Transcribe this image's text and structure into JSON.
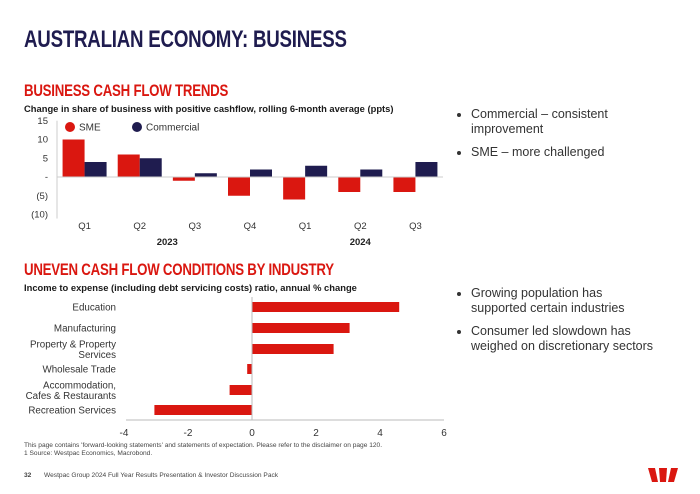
{
  "title": "AUSTRALIAN ECONOMY: BUSINESS",
  "colors": {
    "sme": "#da1710",
    "commercial": "#1f1c4f",
    "accent": "#da1710",
    "title": "#1f1c4f"
  },
  "chart_data": [
    {
      "type": "bar",
      "title": "BUSINESS CASH FLOW TRENDS",
      "subtitle": "Change in share of business with positive cashflow, rolling 6-month average (ppts)",
      "categories": [
        "Q1",
        "Q2",
        "Q3",
        "Q4",
        "Q1",
        "Q2",
        "Q3"
      ],
      "groups": [
        {
          "label": "2023",
          "span": [
            0,
            3
          ]
        },
        {
          "label": "2024",
          "span": [
            4,
            6
          ]
        }
      ],
      "series": [
        {
          "name": "SME",
          "color": "#da1710",
          "values": [
            10,
            6,
            -1,
            -5,
            -6,
            -4,
            -4
          ]
        },
        {
          "name": "Commercial",
          "color": "#1f1c4f",
          "values": [
            4,
            5,
            1,
            2,
            3,
            2,
            4
          ]
        }
      ],
      "yticks": [
        15,
        10,
        5,
        0,
        -5,
        -10
      ],
      "ytick_labels": [
        "15",
        "10",
        "5",
        "-",
        "(5)",
        "(10)"
      ],
      "ylim": [
        -10,
        15
      ],
      "legend": "top-left",
      "grid": false
    },
    {
      "type": "bar",
      "orientation": "horizontal",
      "title": "UNEVEN CASH FLOW CONDITIONS BY INDUSTRY",
      "subtitle": "Income to expense (including debt servicing costs) ratio, annual % change",
      "categories": [
        "Education",
        "Manufacturing",
        "Property & Property Services",
        "Wholesale Trade",
        "Accommodation, Cafes & Restaurants",
        "Recreation Services"
      ],
      "category_lines": [
        [
          "Education"
        ],
        [
          "Manufacturing"
        ],
        [
          "Property & Property",
          "Services"
        ],
        [
          "Wholesale Trade"
        ],
        [
          "Accommodation,",
          "Cafes & Restaurants"
        ],
        [
          "Recreation Services"
        ]
      ],
      "values": [
        4.6,
        3.05,
        2.55,
        -0.15,
        -0.7,
        -3.05
      ],
      "color": "#da1710",
      "xticks": [
        -4,
        -2,
        0,
        2,
        4,
        6
      ],
      "xlim": [
        -4,
        6
      ],
      "grid": false
    }
  ],
  "bullets_top": [
    "Commercial – consistent improvement",
    "SME – more challenged"
  ],
  "bullets_bottom": [
    "Growing population has supported certain industries",
    "Consumer led slowdown has weighed on discretionary sectors"
  ],
  "footnote1": "This page contains 'forward-looking statements' and statements of expectation. Please refer to the disclaimer on page 120.",
  "footnote2": "1 Source: Westpac Economics, Macrobond.",
  "page_number": "32",
  "footer_text": "Westpac Group 2024 Full Year Results Presentation & Investor Discussion Pack",
  "logo": "Westpac"
}
